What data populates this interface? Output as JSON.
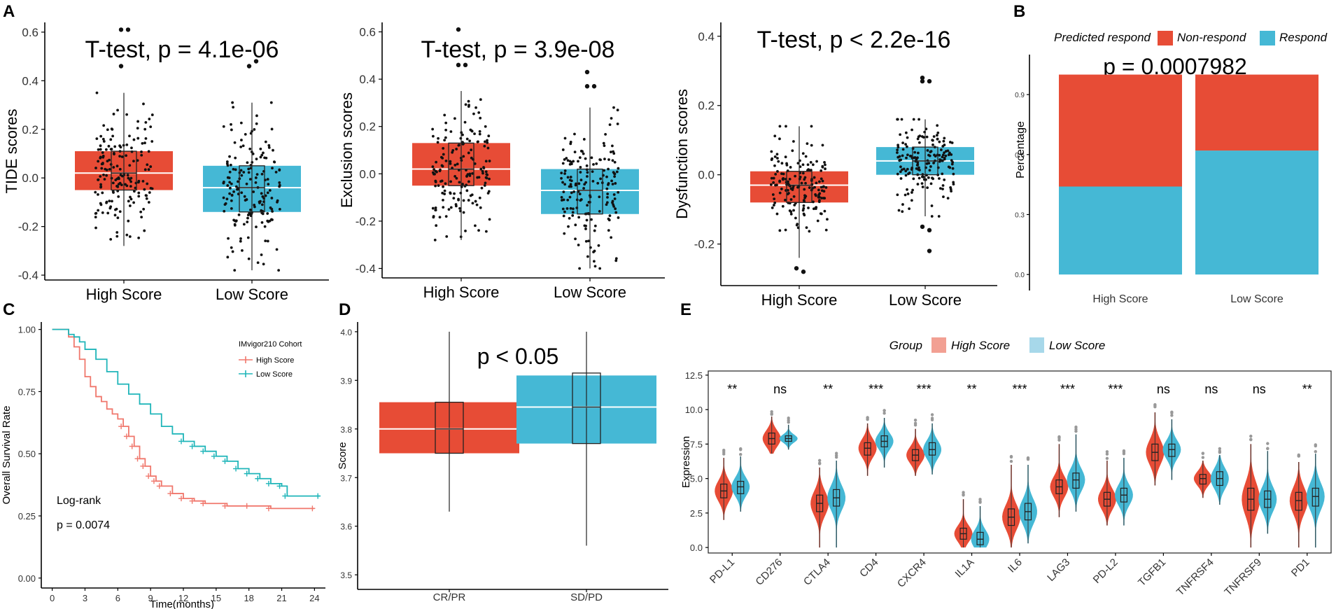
{
  "colors": {
    "high": "#E74C36",
    "low": "#45B8D5",
    "violin_high": "#F2A093",
    "violin_low": "#A7D8EA",
    "km_high": "#F0776C",
    "km_low": "#1FB5B9"
  },
  "panels": {
    "A": "A",
    "B": "B",
    "C": "C",
    "D": "D",
    "E": "E"
  },
  "chart_data": [
    {
      "id": "A1",
      "type": "boxplot",
      "title": "T-test, p = 4.1e-06",
      "ylabel": "TIDE scores",
      "xlabel": "",
      "categories": [
        "High Score",
        "Low Score"
      ],
      "ylim": [
        -0.42,
        0.64
      ],
      "yticks": [
        -0.4,
        -0.2,
        0.0,
        0.2,
        0.4,
        0.6
      ],
      "ytick_labels": [
        "-0.4",
        "-0.2",
        "0.0",
        "0.2",
        "0.4",
        "0.6"
      ],
      "boxes": [
        {
          "name": "High Score",
          "q1": -0.05,
          "median": 0.02,
          "q3": 0.11,
          "whisker_low": -0.28,
          "whisker_high": 0.35
        },
        {
          "name": "Low Score",
          "q1": -0.14,
          "median": -0.04,
          "q3": 0.05,
          "whisker_low": -0.38,
          "whisker_high": 0.31
        }
      ],
      "outliers": [
        [
          0.61,
          0.61,
          0.46
        ],
        [
          0.46,
          0.48
        ]
      ]
    },
    {
      "id": "A2",
      "type": "boxplot",
      "title": "T-test, p = 3.9e-08",
      "ylabel": "Exclusion scores",
      "xlabel": "",
      "categories": [
        "High Score",
        "Low Score"
      ],
      "ylim": [
        -0.44,
        0.64
      ],
      "yticks": [
        -0.4,
        -0.2,
        0.0,
        0.2,
        0.4,
        0.6
      ],
      "ytick_labels": [
        "-0.4",
        "-0.2",
        "0.0",
        "0.2",
        "0.4",
        "0.6"
      ],
      "boxes": [
        {
          "name": "High Score",
          "q1": -0.05,
          "median": 0.02,
          "q3": 0.13,
          "whisker_low": -0.28,
          "whisker_high": 0.35
        },
        {
          "name": "Low Score",
          "q1": -0.17,
          "median": -0.07,
          "q3": 0.02,
          "whisker_low": -0.4,
          "whisker_high": 0.28
        }
      ],
      "outliers": [
        [
          0.61,
          0.46,
          0.46
        ],
        [
          0.37,
          0.37,
          0.43
        ]
      ]
    },
    {
      "id": "A3",
      "type": "boxplot",
      "title": "T-test, p < 2.2e-16",
      "ylabel": "Dysfunction scores",
      "xlabel": "",
      "categories": [
        "High Score",
        "Low Score"
      ],
      "ylim": [
        -0.32,
        0.44
      ],
      "yticks": [
        -0.2,
        0.0,
        0.2,
        0.4
      ],
      "ytick_labels": [
        "-0.2",
        "0.0",
        "0.2",
        "0.4"
      ],
      "boxes": [
        {
          "name": "High Score",
          "q1": -0.08,
          "median": -0.03,
          "q3": 0.01,
          "whisker_low": -0.24,
          "whisker_high": 0.14
        },
        {
          "name": "Low Score",
          "q1": 0.0,
          "median": 0.04,
          "q3": 0.08,
          "whisker_low": -0.12,
          "whisker_high": 0.16
        }
      ],
      "outliers": [
        [
          -0.27,
          -0.28
        ],
        [
          0.27,
          0.27,
          0.28,
          -0.22,
          -0.15,
          -0.16
        ]
      ]
    },
    {
      "id": "B",
      "type": "stacked_bar",
      "title": "p = 0.0007982",
      "ylabel": "Percentage",
      "xlabel": "",
      "categories": [
        "High Score",
        "Low Score"
      ],
      "ylim": [
        0,
        1
      ],
      "yticks": [
        0.0,
        0.3,
        0.6,
        0.9
      ],
      "ytick_labels": [
        "0.0",
        "0.3",
        "0.6",
        "0.9"
      ],
      "legend_title": "Predicted respond",
      "series": [
        {
          "name": "Respond",
          "values": [
            0.44,
            0.62
          ]
        },
        {
          "name": "Non-respond",
          "values": [
            0.56,
            0.38
          ]
        }
      ]
    },
    {
      "id": "C",
      "type": "line",
      "subtype": "kaplan-meier",
      "ylabel": "Overall Survival Rate",
      "xlabel": "Time(months)",
      "xlim": [
        -1,
        25
      ],
      "ylim": [
        0,
        1
      ],
      "xticks": [
        0,
        3,
        6,
        9,
        12,
        15,
        18,
        21,
        24
      ],
      "xtick_labels": [
        "0",
        "3",
        "6",
        "9",
        "12",
        "15",
        "18",
        "21",
        "24"
      ],
      "yticks": [
        0.0,
        0.25,
        0.5,
        0.75,
        1.0
      ],
      "ytick_labels": [
        "0.00",
        "0.25",
        "0.50",
        "0.75",
        "1.00"
      ],
      "legend_title": "IMvigor210 Cohort",
      "annotation_1": "Log-rank",
      "annotation_2": "p = 0.0074",
      "series": [
        {
          "name": "High Score",
          "x": [
            0,
            1,
            1.5,
            2,
            2.5,
            3,
            3.5,
            4,
            4.5,
            5,
            5.5,
            6,
            6.5,
            7,
            7.5,
            8,
            8.5,
            9,
            9.5,
            10,
            11,
            12,
            13,
            14,
            16,
            18,
            20,
            24
          ],
          "y": [
            1.0,
            1.0,
            0.97,
            0.93,
            0.88,
            0.81,
            0.77,
            0.73,
            0.71,
            0.68,
            0.66,
            0.64,
            0.61,
            0.57,
            0.53,
            0.48,
            0.45,
            0.41,
            0.39,
            0.37,
            0.34,
            0.32,
            0.31,
            0.3,
            0.29,
            0.29,
            0.28,
            0.28
          ]
        },
        {
          "name": "Low Score",
          "x": [
            0,
            1,
            1.5,
            2,
            2.5,
            3,
            4,
            5,
            6,
            7,
            8,
            9,
            10,
            11,
            12,
            13,
            14,
            15,
            16,
            17,
            18,
            19,
            20,
            21,
            21.5,
            24.5
          ],
          "y": [
            1.0,
            1.0,
            0.98,
            0.97,
            0.95,
            0.92,
            0.88,
            0.83,
            0.78,
            0.74,
            0.7,
            0.66,
            0.61,
            0.58,
            0.55,
            0.53,
            0.51,
            0.49,
            0.47,
            0.44,
            0.42,
            0.4,
            0.38,
            0.37,
            0.33,
            0.33
          ]
        }
      ]
    },
    {
      "id": "D",
      "type": "boxplot",
      "title": "p < 0.05",
      "ylabel": "Score",
      "xlabel": "",
      "categories": [
        "CR/PR",
        "SD/PD"
      ],
      "ylim": [
        3.47,
        4.02
      ],
      "yticks": [
        3.5,
        3.6,
        3.7,
        3.8,
        3.9,
        4.0
      ],
      "ytick_labels": [
        "3.5",
        "3.6",
        "3.7",
        "3.8",
        "3.9",
        "4.0"
      ],
      "boxes": [
        {
          "name": "CR/PR",
          "q1": 3.75,
          "median": 3.8,
          "q3": 3.855,
          "whisker_low": 3.63,
          "whisker_high": 4.0,
          "inner_q1": 3.75,
          "inner_q3": 3.855
        },
        {
          "name": "SD/PD",
          "q1": 3.77,
          "median": 3.845,
          "q3": 3.91,
          "whisker_low": 3.56,
          "whisker_high": 4.0,
          "inner_q1": 3.77,
          "inner_q3": 3.915
        }
      ]
    },
    {
      "id": "E",
      "type": "violin",
      "ylabel": "Expression",
      "xlabel": "",
      "legend_title": "Group",
      "legend_items": [
        "High Score",
        "Low Score"
      ],
      "ylim": [
        -0.4,
        12.8
      ],
      "yticks": [
        0.0,
        2.5,
        5.0,
        7.5,
        10.0,
        12.5
      ],
      "ytick_labels": [
        "0.0",
        "2.5",
        "5.0",
        "7.5",
        "10.0",
        "12.5"
      ],
      "categories": [
        "PD-L1",
        "CD276",
        "CTLA4",
        "CD4",
        "CXCR4",
        "IL1A",
        "IL6",
        "LAG3",
        "PD-L2",
        "TGFB1",
        "TNFRSF4",
        "TNFRSF9",
        "PD1"
      ],
      "significance": [
        "**",
        "ns",
        "**",
        "***",
        "***",
        "**",
        "***",
        "***",
        "***",
        "ns",
        "ns",
        "ns",
        "**"
      ],
      "high": [
        {
          "median": 4.1,
          "q1": 3.6,
          "q3": 4.6,
          "min": 2.0,
          "max": 6.5
        },
        {
          "median": 7.9,
          "q1": 7.5,
          "q3": 8.3,
          "min": 6.8,
          "max": 9.5
        },
        {
          "median": 3.2,
          "q1": 2.6,
          "q3": 3.8,
          "min": 0.0,
          "max": 5.8
        },
        {
          "median": 7.2,
          "q1": 6.7,
          "q3": 7.6,
          "min": 5.2,
          "max": 9.0
        },
        {
          "median": 6.7,
          "q1": 6.3,
          "q3": 7.1,
          "min": 5.2,
          "max": 8.6
        },
        {
          "median": 1.0,
          "q1": 0.6,
          "q3": 1.4,
          "min": 0.0,
          "max": 3.5
        },
        {
          "median": 2.2,
          "q1": 1.6,
          "q3": 2.8,
          "min": 0.0,
          "max": 6.0
        },
        {
          "median": 4.4,
          "q1": 3.9,
          "q3": 4.9,
          "min": 2.2,
          "max": 7.5
        },
        {
          "median": 3.5,
          "q1": 3.0,
          "q3": 4.0,
          "min": 1.6,
          "max": 6.3
        },
        {
          "median": 6.9,
          "q1": 6.3,
          "q3": 7.5,
          "min": 4.5,
          "max": 9.8
        },
        {
          "median": 5.0,
          "q1": 4.6,
          "q3": 5.3,
          "min": 3.6,
          "max": 6.3
        },
        {
          "median": 3.5,
          "q1": 2.7,
          "q3": 4.3,
          "min": 0.0,
          "max": 7.5
        },
        {
          "median": 3.4,
          "q1": 2.7,
          "q3": 4.0,
          "min": 0.0,
          "max": 6.2
        }
      ],
      "low": [
        {
          "median": 4.4,
          "q1": 3.9,
          "q3": 4.8,
          "min": 2.6,
          "max": 6.6
        },
        {
          "median": 7.9,
          "q1": 7.7,
          "q3": 8.1,
          "min": 7.1,
          "max": 8.9
        },
        {
          "median": 3.6,
          "q1": 3.0,
          "q3": 4.2,
          "min": 0.0,
          "max": 6.3
        },
        {
          "median": 7.7,
          "q1": 7.3,
          "q3": 8.1,
          "min": 5.8,
          "max": 9.4
        },
        {
          "median": 7.1,
          "q1": 6.7,
          "q3": 7.6,
          "min": 5.3,
          "max": 9.0
        },
        {
          "median": 0.6,
          "q1": 0.2,
          "q3": 1.1,
          "min": 0.0,
          "max": 3.0
        },
        {
          "median": 2.6,
          "q1": 2.0,
          "q3": 3.2,
          "min": 0.3,
          "max": 6.0
        },
        {
          "median": 4.9,
          "q1": 4.3,
          "q3": 5.4,
          "min": 2.6,
          "max": 8.2
        },
        {
          "median": 3.8,
          "q1": 3.3,
          "q3": 4.3,
          "min": 1.6,
          "max": 6.5
        },
        {
          "median": 7.1,
          "q1": 6.6,
          "q3": 7.5,
          "min": 4.9,
          "max": 9.3
        },
        {
          "median": 5.0,
          "q1": 4.5,
          "q3": 5.5,
          "min": 3.1,
          "max": 6.7
        },
        {
          "median": 3.5,
          "q1": 2.9,
          "q3": 4.1,
          "min": 1.0,
          "max": 7.0
        },
        {
          "median": 3.7,
          "q1": 3.0,
          "q3": 4.3,
          "min": 0.0,
          "max": 6.8
        }
      ]
    }
  ]
}
